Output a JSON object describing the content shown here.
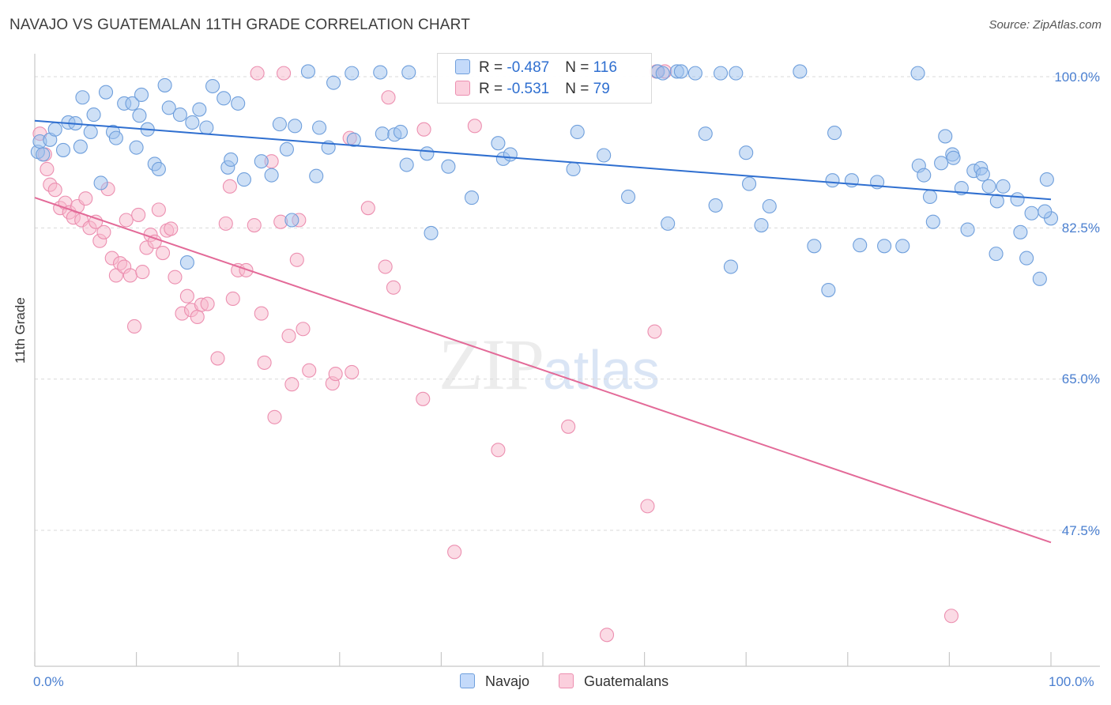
{
  "header": {
    "title": "NAVAJO VS GUATEMALAN 11TH GRADE CORRELATION CHART",
    "source": "Source: ZipAtlas.com"
  },
  "watermark": {
    "zip": "ZIP",
    "atlas": "atlas"
  },
  "legend": {
    "navajo": {
      "r_label": "R = ",
      "r_value": "-0.487",
      "n_label": "N = ",
      "n_value": "116"
    },
    "guatemalan": {
      "r_label": "R = ",
      "r_value": "-0.531",
      "n_label": "N = ",
      "n_value": "79"
    }
  },
  "colors": {
    "navajo_fill": "#9ec2ee",
    "navajo_stroke": "#6f9fdc",
    "navajo_line": "#2f6fd0",
    "guatemalan_fill": "#f7b8cc",
    "guatemalan_stroke": "#ec8fb0",
    "guatemalan_line": "#e36a98",
    "axis_text": "#4a7fd0",
    "grid": "#d9d9d9"
  },
  "chart_data": {
    "type": "scatter",
    "title": "NAVAJO VS GUATEMALAN 11TH GRADE CORRELATION CHART",
    "xlabel": "",
    "ylabel": "11th Grade",
    "xlim": [
      0,
      100
    ],
    "ylim": [
      30,
      102
    ],
    "x_tick_labels": [
      "0.0%",
      "100.0%"
    ],
    "y_ticks": [
      47.5,
      65.0,
      82.5,
      100.0
    ],
    "y_tick_labels": [
      "47.5%",
      "65.0%",
      "82.5%",
      "100.0%"
    ],
    "grid": true,
    "legend_position": "top-center",
    "series": [
      {
        "name": "Navajo",
        "trend": [
          [
            0,
            94.9
          ],
          [
            100,
            85.8
          ]
        ],
        "points": [
          [
            0.3,
            91.3
          ],
          [
            0.5,
            92.5
          ],
          [
            0.8,
            91.0
          ],
          [
            1.5,
            92.7
          ],
          [
            2,
            93.9
          ],
          [
            2.8,
            91.5
          ],
          [
            3.3,
            94.7
          ],
          [
            4,
            94.6
          ],
          [
            4.5,
            91.9
          ],
          [
            4.7,
            97.6
          ],
          [
            5.5,
            93.6
          ],
          [
            5.8,
            95.6
          ],
          [
            6.5,
            87.7
          ],
          [
            7,
            98.2
          ],
          [
            7.7,
            93.6
          ],
          [
            8,
            92.9
          ],
          [
            8.8,
            96.9
          ],
          [
            9.6,
            96.9
          ],
          [
            10,
            91.8
          ],
          [
            10.3,
            95.5
          ],
          [
            10.5,
            97.9
          ],
          [
            11.1,
            93.9
          ],
          [
            11.8,
            89.9
          ],
          [
            12.2,
            89.3
          ],
          [
            12.8,
            99.0
          ],
          [
            13.2,
            96.4
          ],
          [
            14.3,
            95.6
          ],
          [
            15,
            78.5
          ],
          [
            15.5,
            94.7
          ],
          [
            16.2,
            96.2
          ],
          [
            16.9,
            94.1
          ],
          [
            17.5,
            98.9
          ],
          [
            18.6,
            97.5
          ],
          [
            19,
            89.5
          ],
          [
            19.3,
            90.4
          ],
          [
            20,
            96.9
          ],
          [
            20.6,
            88.1
          ],
          [
            22.3,
            90.2
          ],
          [
            23.3,
            88.6
          ],
          [
            24.1,
            94.5
          ],
          [
            24.8,
            91.6
          ],
          [
            25.3,
            83.4
          ],
          [
            25.6,
            94.3
          ],
          [
            26.9,
            100.6
          ],
          [
            27.7,
            88.5
          ],
          [
            28,
            94.1
          ],
          [
            28.9,
            91.8
          ],
          [
            29.4,
            99.3
          ],
          [
            31.2,
            100.4
          ],
          [
            31.4,
            92.7
          ],
          [
            34,
            100.5
          ],
          [
            34.2,
            93.4
          ],
          [
            35.4,
            93.3
          ],
          [
            36,
            93.6
          ],
          [
            36.6,
            89.8
          ],
          [
            36.8,
            100.5
          ],
          [
            38.6,
            91.1
          ],
          [
            39,
            81.9
          ],
          [
            40.7,
            89.6
          ],
          [
            43,
            86.0
          ],
          [
            45.6,
            92.3
          ],
          [
            46.1,
            90.5
          ],
          [
            46.8,
            91.0
          ],
          [
            53,
            89.3
          ],
          [
            53.4,
            93.6
          ],
          [
            56,
            90.9
          ],
          [
            58.4,
            86.1
          ],
          [
            61.3,
            100.6
          ],
          [
            61.8,
            100.4
          ],
          [
            62.3,
            83.0
          ],
          [
            63.2,
            100.6
          ],
          [
            63.6,
            100.6
          ],
          [
            65,
            100.4
          ],
          [
            66,
            93.4
          ],
          [
            67,
            85.1
          ],
          [
            67.5,
            100.4
          ],
          [
            68.5,
            78.0
          ],
          [
            69,
            100.4
          ],
          [
            70,
            91.2
          ],
          [
            70.3,
            87.6
          ],
          [
            71.5,
            82.8
          ],
          [
            72.3,
            85.0
          ],
          [
            75.3,
            100.6
          ],
          [
            76.7,
            80.4
          ],
          [
            78.1,
            75.3
          ],
          [
            78.5,
            88.0
          ],
          [
            78.7,
            93.5
          ],
          [
            80.4,
            88.0
          ],
          [
            81.2,
            80.5
          ],
          [
            82.9,
            87.8
          ],
          [
            83.6,
            80.4
          ],
          [
            85.4,
            80.4
          ],
          [
            86.9,
            100.4
          ],
          [
            87,
            89.7
          ],
          [
            87.5,
            88.6
          ],
          [
            88.1,
            86.1
          ],
          [
            88.4,
            83.2
          ],
          [
            89.2,
            90.0
          ],
          [
            89.6,
            93.1
          ],
          [
            90.3,
            91.0
          ],
          [
            90.4,
            90.6
          ],
          [
            91.2,
            87.1
          ],
          [
            91.8,
            82.3
          ],
          [
            92.4,
            89.1
          ],
          [
            93.1,
            89.4
          ],
          [
            93.3,
            88.7
          ],
          [
            93.9,
            87.3
          ],
          [
            94.6,
            79.5
          ],
          [
            94.7,
            85.6
          ],
          [
            95.3,
            87.3
          ],
          [
            96.7,
            85.8
          ],
          [
            97,
            82.0
          ],
          [
            97.6,
            79.0
          ],
          [
            98.1,
            84.2
          ],
          [
            98.9,
            76.6
          ],
          [
            100,
            83.6
          ],
          [
            99.6,
            88.1
          ],
          [
            99.4,
            84.4
          ]
        ]
      },
      {
        "name": "Guatemalans",
        "trend": [
          [
            0,
            86.0
          ],
          [
            100,
            46.1
          ]
        ],
        "points": [
          [
            0.5,
            93.4
          ],
          [
            1,
            91.0
          ],
          [
            1.2,
            89.3
          ],
          [
            1.5,
            87.5
          ],
          [
            2,
            86.9
          ],
          [
            2.5,
            84.8
          ],
          [
            3,
            85.4
          ],
          [
            3.4,
            84.3
          ],
          [
            3.8,
            83.7
          ],
          [
            4.2,
            85.0
          ],
          [
            4.6,
            83.4
          ],
          [
            5,
            85.9
          ],
          [
            5.4,
            82.5
          ],
          [
            6,
            83.2
          ],
          [
            6.4,
            81.0
          ],
          [
            6.8,
            82.0
          ],
          [
            7.2,
            87.0
          ],
          [
            7.6,
            79.0
          ],
          [
            8,
            77.0
          ],
          [
            8.4,
            78.4
          ],
          [
            8.8,
            78.0
          ],
          [
            9,
            83.4
          ],
          [
            9.4,
            77.0
          ],
          [
            9.8,
            71.1
          ],
          [
            10.2,
            84.0
          ],
          [
            10.6,
            77.4
          ],
          [
            11,
            80.2
          ],
          [
            11.4,
            81.7
          ],
          [
            11.8,
            80.9
          ],
          [
            12.2,
            84.6
          ],
          [
            12.6,
            79.6
          ],
          [
            13,
            82.2
          ],
          [
            13.4,
            82.4
          ],
          [
            13.8,
            76.8
          ],
          [
            14.5,
            72.6
          ],
          [
            15,
            74.6
          ],
          [
            15.4,
            73.0
          ],
          [
            16,
            72.2
          ],
          [
            16.4,
            73.6
          ],
          [
            17,
            73.7
          ],
          [
            18,
            67.4
          ],
          [
            18.8,
            83.0
          ],
          [
            19.2,
            87.3
          ],
          [
            19.5,
            74.3
          ],
          [
            20,
            77.6
          ],
          [
            20.8,
            77.6
          ],
          [
            21.6,
            82.8
          ],
          [
            22.3,
            72.6
          ],
          [
            22.6,
            66.9
          ],
          [
            23.3,
            90.2
          ],
          [
            23.6,
            60.6
          ],
          [
            24.2,
            83.2
          ],
          [
            25,
            70.0
          ],
          [
            25.3,
            64.4
          ],
          [
            25.8,
            78.8
          ],
          [
            26,
            83.4
          ],
          [
            26.4,
            70.8
          ],
          [
            27,
            66.0
          ],
          [
            29.3,
            64.5
          ],
          [
            29.6,
            65.6
          ],
          [
            31,
            92.9
          ],
          [
            31.2,
            65.8
          ],
          [
            32.8,
            84.8
          ],
          [
            34.5,
            78.0
          ],
          [
            34.8,
            97.6
          ],
          [
            35.3,
            75.6
          ],
          [
            38.2,
            62.7
          ],
          [
            38.3,
            93.9
          ],
          [
            41.3,
            45.0
          ],
          [
            43.3,
            94.3
          ],
          [
            45.6,
            56.8
          ],
          [
            52.5,
            59.5
          ],
          [
            56.3,
            35.4
          ],
          [
            60.3,
            50.3
          ],
          [
            61,
            70.5
          ],
          [
            61.2,
            100.6
          ],
          [
            62,
            100.6
          ],
          [
            90.2,
            37.6
          ],
          [
            21.9,
            100.4
          ],
          [
            24.5,
            100.4
          ]
        ]
      }
    ]
  },
  "bottom_legend": {
    "navajo": "Navajo",
    "guatemalan": "Guatemalans"
  },
  "axes": {
    "ylabel": "11th Grade",
    "x_left": "0.0%",
    "x_right": "100.0%",
    "y_labels": [
      "100.0%",
      "82.5%",
      "65.0%",
      "47.5%"
    ]
  }
}
